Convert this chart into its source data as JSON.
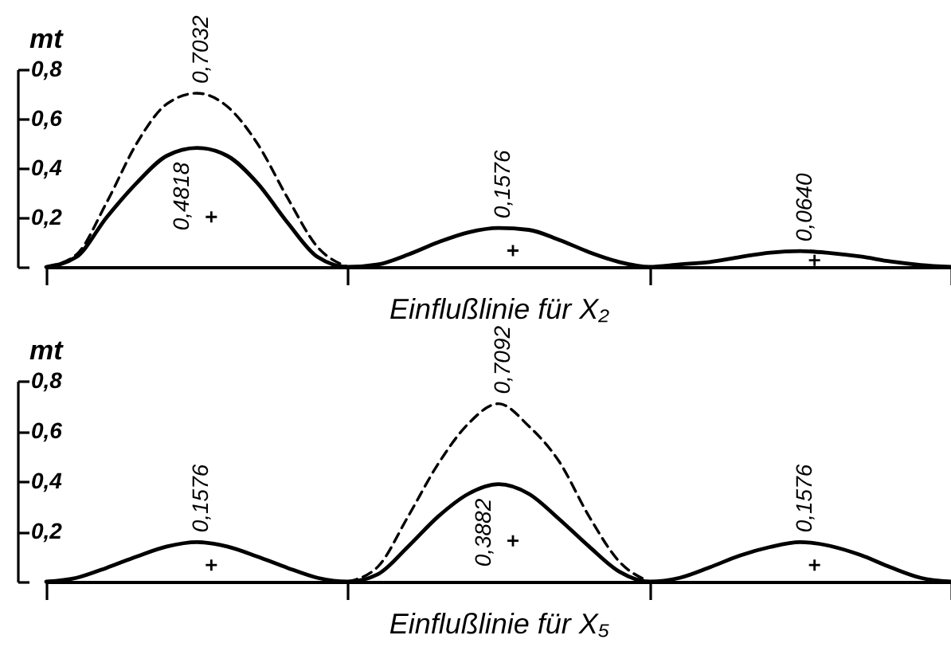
{
  "chart_data": [
    {
      "type": "line",
      "xlabel": "Einflußlinie für X₂",
      "ylabel": "mt",
      "categories": [
        null,
        null,
        null,
        null,
        null,
        null,
        null,
        null,
        null,
        null,
        null,
        null,
        null,
        null,
        null,
        null,
        null,
        null,
        null,
        null,
        null,
        null,
        null,
        null,
        null,
        null,
        null,
        null,
        null,
        null,
        null
      ],
      "ylim": [
        0,
        0.8
      ],
      "yticks": [
        {
          "value": 0,
          "label": null
        },
        {
          "value": 0.2,
          "label": "0,2"
        },
        {
          "value": 0.4,
          "label": "0,4"
        },
        {
          "value": 0.6,
          "label": "0,6"
        },
        {
          "value": 0.8,
          "label": "0,8"
        }
      ],
      "tick_labels": "y",
      "series": [
        {
          "color": "#000000",
          "values": [
            0,
            0.04,
            0.2,
            0.34,
            0.45,
            0.4818,
            0.45,
            0.34,
            0.18,
            0.04,
            0,
            0.01,
            0.05,
            0.1,
            0.14,
            0.1576,
            0.15,
            0.11,
            0.06,
            0.02,
            0,
            0.01,
            0.02,
            0.04,
            0.058,
            0.064,
            0.056,
            0.042,
            0.022,
            0.008,
            0
          ],
          "value_labels": [
            null,
            null,
            null,
            null,
            null,
            "0,4818",
            null,
            null,
            null,
            null,
            null,
            null,
            null,
            null,
            null,
            "0,1576",
            null,
            null,
            null,
            null,
            null,
            null,
            null,
            null,
            null,
            "0,0640",
            null,
            null,
            null,
            null,
            null
          ]
        },
        {
          "color": "#000000",
          "line_style": "dashed",
          "values": [
            0,
            0.05,
            0.26,
            0.5,
            0.66,
            0.7032,
            0.65,
            0.5,
            0.28,
            0.08,
            0,
            null,
            null,
            null,
            null,
            null,
            null,
            null,
            null,
            null,
            null,
            null,
            null,
            null,
            null,
            null,
            null,
            null,
            null,
            null,
            null
          ],
          "value_labels": [
            null,
            null,
            null,
            null,
            null,
            "0,7032",
            null,
            null,
            null,
            null,
            null,
            null,
            null,
            null,
            null,
            null,
            null,
            null,
            null,
            null,
            null,
            null,
            null,
            null,
            null,
            null,
            null,
            null,
            null,
            null,
            null
          ]
        }
      ]
    },
    {
      "type": "line",
      "xlabel": "Einflußlinie für X₅",
      "ylabel": "mt",
      "categories": [
        null,
        null,
        null,
        null,
        null,
        null,
        null,
        null,
        null,
        null,
        null,
        null,
        null,
        null,
        null,
        null,
        null,
        null,
        null,
        null,
        null,
        null,
        null,
        null,
        null,
        null,
        null,
        null,
        null,
        null,
        null
      ],
      "ylim": [
        0,
        0.8
      ],
      "yticks": [
        {
          "value": 0,
          "label": null
        },
        {
          "value": 0.2,
          "label": "0,2"
        },
        {
          "value": 0.4,
          "label": "0,4"
        },
        {
          "value": 0.6,
          "label": "0,6"
        },
        {
          "value": 0.8,
          "label": "0,8"
        }
      ],
      "tick_labels": "y",
      "series": [
        {
          "color": "#000000",
          "values": [
            0,
            0.015,
            0.055,
            0.1,
            0.14,
            0.1576,
            0.14,
            0.1,
            0.055,
            0.015,
            0,
            0.03,
            0.14,
            0.26,
            0.35,
            0.3882,
            0.35,
            0.25,
            0.14,
            0.04,
            0,
            0.015,
            0.057,
            0.104,
            0.138,
            0.1576,
            0.142,
            0.106,
            0.057,
            0.015,
            0
          ],
          "value_labels": [
            null,
            null,
            null,
            null,
            null,
            "0,1576",
            null,
            null,
            null,
            null,
            null,
            null,
            null,
            null,
            null,
            "0,3882",
            null,
            null,
            null,
            null,
            null,
            null,
            null,
            null,
            null,
            "0,1576",
            null,
            null,
            null,
            null,
            null
          ]
        },
        {
          "color": "#000000",
          "line_style": "dashed",
          "values": [
            null,
            null,
            null,
            null,
            null,
            null,
            null,
            null,
            null,
            null,
            0,
            0.06,
            0.26,
            0.47,
            0.63,
            0.7092,
            0.62,
            0.48,
            0.26,
            0.08,
            0,
            null,
            null,
            null,
            null,
            null,
            null,
            null,
            null,
            null,
            null
          ],
          "value_labels": [
            null,
            null,
            null,
            null,
            null,
            null,
            null,
            null,
            null,
            null,
            null,
            null,
            null,
            null,
            null,
            "0,7092",
            null,
            null,
            null,
            null,
            null,
            null,
            null,
            null,
            null,
            null,
            null,
            null,
            null,
            null,
            null
          ]
        }
      ]
    }
  ]
}
